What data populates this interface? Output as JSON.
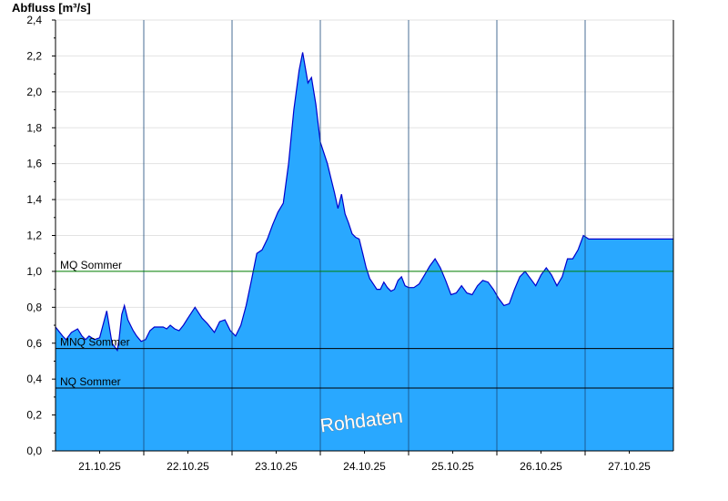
{
  "chart_data": {
    "type": "area",
    "title": "",
    "ylabel": "Abfluss [m³/s]",
    "xlabel": "",
    "ylim": [
      0,
      2.4
    ],
    "xlim": [
      0,
      7
    ],
    "y_ticks": [
      "0,0",
      "0,2",
      "0,4",
      "0,6",
      "0,8",
      "1,0",
      "1,2",
      "1,4",
      "1,6",
      "1,8",
      "2,0",
      "2,2",
      "2,4"
    ],
    "x_tick_labels": [
      "21.10.25",
      "22.10.25",
      "23.10.25",
      "24.10.25",
      "25.10.25",
      "26.10.25",
      "27.10.25"
    ],
    "grid": true,
    "legend": "none",
    "fill_color": "#29a8ff",
    "line_color": "#0000cc",
    "reference_lines": [
      {
        "label": "MQ Sommer",
        "value": 1.0,
        "color": "#008000"
      },
      {
        "label": "MNQ Sommer",
        "value": 0.57,
        "color": "#000000"
      },
      {
        "label": "NQ Sommer",
        "value": 0.35,
        "color": "#000000"
      }
    ],
    "watermark": "Rohdaten",
    "series": [
      {
        "x": [
          0,
          0.08,
          0.12,
          0.18,
          0.25,
          0.3,
          0.34,
          0.38,
          0.44,
          0.5,
          0.58,
          0.64,
          0.7,
          0.72,
          0.75,
          0.78,
          0.8,
          0.82,
          0.85,
          0.88,
          0.92,
          0.97,
          1.02,
          1.07,
          1.12,
          1.17,
          1.22,
          1.26,
          1.3,
          1.35,
          1.4,
          1.45,
          1.5,
          1.58,
          1.62,
          1.66,
          1.72,
          1.8,
          1.86,
          1.92,
          1.98,
          2.04,
          2.1,
          2.16,
          2.22,
          2.28,
          2.34,
          2.4,
          2.46,
          2.52,
          2.58,
          2.64,
          2.7,
          2.76,
          2.8,
          2.86,
          2.9,
          2.95,
          3.0,
          3.04,
          3.08,
          3.12,
          3.16,
          3.2,
          3.24,
          3.28,
          3.32,
          3.36,
          3.4,
          3.44,
          3.48,
          3.52,
          3.56,
          3.6,
          3.64,
          3.68,
          3.72,
          3.76,
          3.8,
          3.84,
          3.88,
          3.92,
          3.96,
          4.0,
          4.06,
          4.12,
          4.18,
          4.24,
          4.3,
          4.36,
          4.42,
          4.48,
          4.54,
          4.6,
          4.66,
          4.72,
          4.78,
          4.84,
          4.9,
          4.96,
          5.02,
          5.08,
          5.14,
          5.2,
          5.26,
          5.32,
          5.38,
          5.44,
          5.5,
          5.56,
          5.62,
          5.68,
          5.74,
          5.8,
          5.86,
          5.92,
          5.98,
          6.04,
          6.1,
          6.16,
          6.22,
          6.28,
          6.34,
          6.4,
          6.46,
          6.52,
          6.58,
          6.64,
          6.7,
          6.76,
          6.82,
          6.86,
          6.9,
          6.94,
          7.0
        ],
        "y": [
          0.69,
          0.64,
          0.62,
          0.66,
          0.68,
          0.64,
          0.62,
          0.64,
          0.62,
          0.63,
          0.78,
          0.6,
          0.56,
          0.62,
          0.76,
          0.81,
          0.77,
          0.73,
          0.7,
          0.67,
          0.64,
          0.61,
          0.62,
          0.67,
          0.69,
          0.69,
          0.69,
          0.68,
          0.7,
          0.68,
          0.67,
          0.7,
          0.74,
          0.8,
          0.77,
          0.74,
          0.71,
          0.66,
          0.72,
          0.73,
          0.67,
          0.64,
          0.7,
          0.81,
          0.95,
          1.1,
          1.12,
          1.18,
          1.26,
          1.33,
          1.38,
          1.6,
          1.9,
          2.12,
          2.22,
          2.05,
          2.08,
          1.93,
          1.72,
          1.66,
          1.6,
          1.52,
          1.44,
          1.35,
          1.43,
          1.32,
          1.27,
          1.21,
          1.19,
          1.18,
          1.1,
          1.02,
          0.96,
          0.93,
          0.9,
          0.9,
          0.94,
          0.91,
          0.89,
          0.9,
          0.95,
          0.97,
          0.92,
          0.91,
          0.91,
          0.93,
          0.98,
          1.03,
          1.07,
          1.02,
          0.95,
          0.87,
          0.88,
          0.92,
          0.88,
          0.87,
          0.92,
          0.95,
          0.94,
          0.9,
          0.85,
          0.81,
          0.82,
          0.9,
          0.97,
          1.0,
          0.96,
          0.92,
          0.98,
          1.02,
          0.98,
          0.92,
          0.97,
          1.07,
          1.07,
          1.12,
          1.2,
          1.18,
          1.18,
          1.18,
          1.18,
          1.18,
          1.18,
          1.18,
          1.18,
          1.18,
          1.18,
          1.18,
          1.18,
          1.18,
          1.18,
          1.18,
          1.18,
          1.18,
          1.18
        ]
      }
    ]
  }
}
